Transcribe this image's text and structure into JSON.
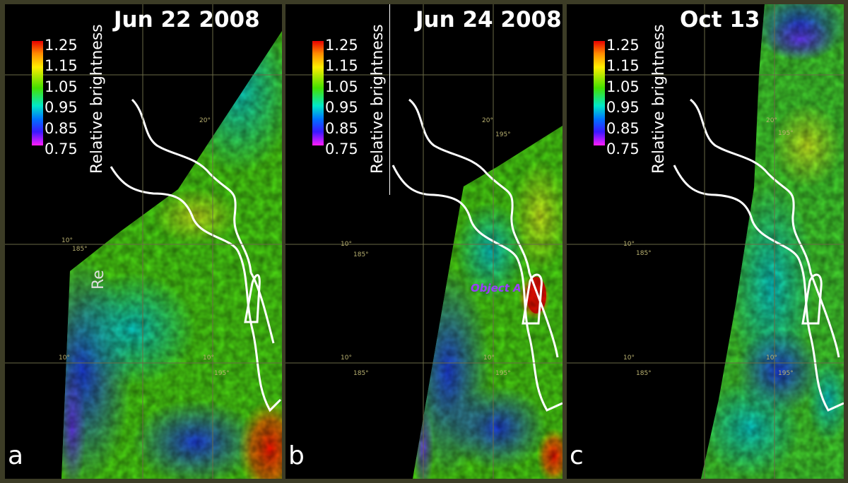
{
  "colorbar": {
    "ticks": [
      "1.25",
      "1.15",
      "1.05",
      "0.95",
      "0.85",
      "0.75"
    ],
    "label": "Relative brightness"
  },
  "panels": [
    {
      "letter": "a",
      "date": "Jun 22 2008"
    },
    {
      "letter": "b",
      "date": "Jun 24 2008"
    },
    {
      "letter": "c",
      "date": "Oct 13"
    }
  ],
  "graticule": {
    "lat_20": "20°",
    "lat_10": "10°",
    "lat_10s": "10°",
    "lon_185": "185°",
    "lon_195": "195°"
  },
  "annotations": {
    "object_label": "Object A",
    "cutoff_label": "Re"
  },
  "colors": {
    "high": "#e60000",
    "mid": "#44e000",
    "low": "#ff1cff",
    "background": "#000000",
    "frame": "#3c3c26"
  }
}
